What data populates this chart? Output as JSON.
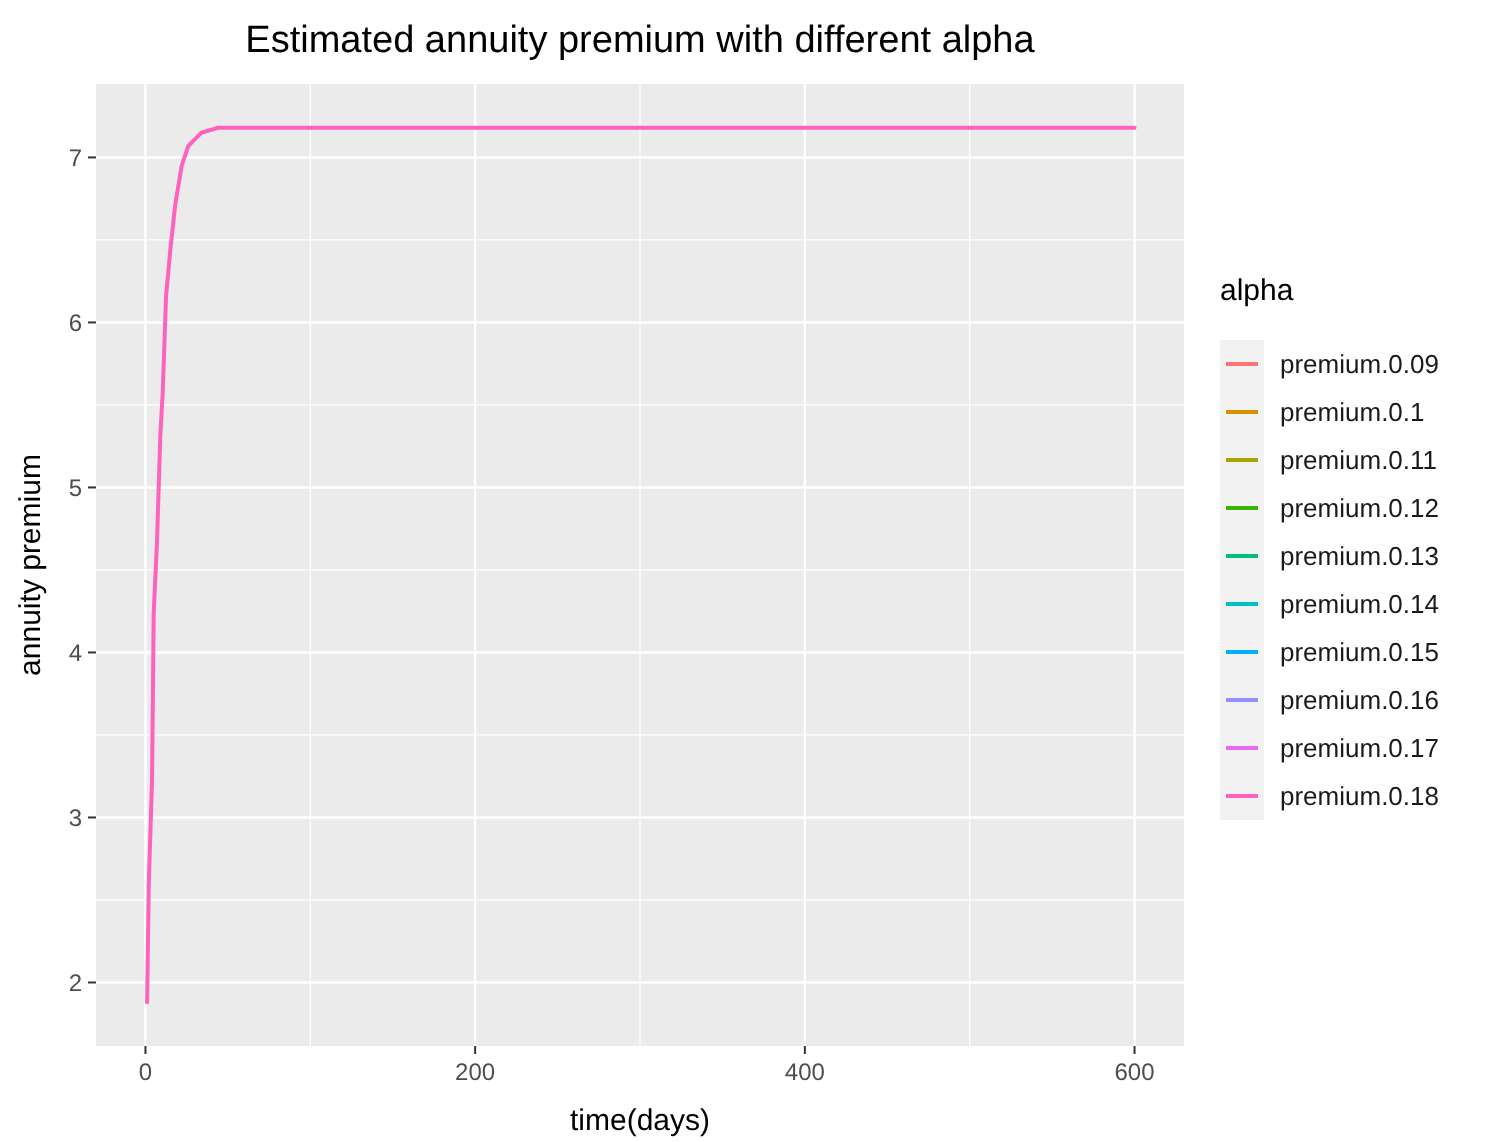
{
  "chart_data": {
    "type": "line",
    "title": "Estimated annuity premium with different alpha",
    "xlabel": "time(days)",
    "ylabel": "annuity premium",
    "legend_title": "alpha",
    "legend": "right",
    "grid": true,
    "line_style": "solid",
    "marker": "none",
    "x": [
      1,
      2,
      4,
      5,
      7,
      9,
      10.5,
      12.5,
      15,
      18,
      22,
      26,
      34,
      44,
      600
    ],
    "xlim": [
      -30,
      630
    ],
    "xticks": [
      0,
      200,
      400,
      600
    ],
    "ylim": [
      1.615,
      7.445
    ],
    "yticks": [
      2,
      3,
      4,
      5,
      6,
      7
    ],
    "series": [
      {
        "name": "premium.0.09",
        "color": "#f8766d",
        "values": [
          null,
          null,
          null,
          null,
          null,
          null,
          null,
          null,
          null,
          null,
          null,
          null,
          null,
          null,
          null
        ]
      },
      {
        "name": "premium.0.1",
        "color": "#d89000",
        "values": [
          null,
          null,
          null,
          null,
          null,
          null,
          null,
          null,
          null,
          null,
          null,
          null,
          null,
          null,
          null
        ]
      },
      {
        "name": "premium.0.11",
        "color": "#a3a500",
        "values": [
          null,
          null,
          null,
          null,
          null,
          null,
          null,
          null,
          null,
          null,
          null,
          null,
          null,
          null,
          null
        ]
      },
      {
        "name": "premium.0.12",
        "color": "#39b600",
        "values": [
          null,
          null,
          null,
          null,
          null,
          null,
          null,
          null,
          null,
          null,
          null,
          null,
          null,
          null,
          null
        ]
      },
      {
        "name": "premium.0.13",
        "color": "#00bf7d",
        "values": [
          null,
          null,
          null,
          null,
          null,
          null,
          null,
          null,
          null,
          null,
          null,
          null,
          null,
          null,
          null
        ]
      },
      {
        "name": "premium.0.14",
        "color": "#00bfc4",
        "values": [
          null,
          null,
          null,
          null,
          null,
          null,
          null,
          null,
          null,
          null,
          null,
          null,
          null,
          null,
          null
        ]
      },
      {
        "name": "premium.0.15",
        "color": "#00b0f6",
        "values": [
          null,
          null,
          null,
          null,
          null,
          null,
          null,
          null,
          null,
          null,
          null,
          null,
          null,
          null,
          null
        ]
      },
      {
        "name": "premium.0.16",
        "color": "#9590ff",
        "values": [
          null,
          null,
          null,
          null,
          null,
          null,
          null,
          null,
          null,
          null,
          null,
          null,
          null,
          null,
          null
        ]
      },
      {
        "name": "premium.0.17",
        "color": "#e76bf3",
        "values": [
          null,
          null,
          null,
          null,
          null,
          null,
          null,
          null,
          null,
          null,
          null,
          null,
          null,
          null,
          null
        ]
      },
      {
        "name": "premium.0.18",
        "color": "#ff62bc",
        "values": [
          1.88,
          2.59,
          3.23,
          4.24,
          4.67,
          5.31,
          5.58,
          6.16,
          6.43,
          6.71,
          6.95,
          7.07,
          7.15,
          7.18,
          7.18
        ]
      }
    ]
  }
}
